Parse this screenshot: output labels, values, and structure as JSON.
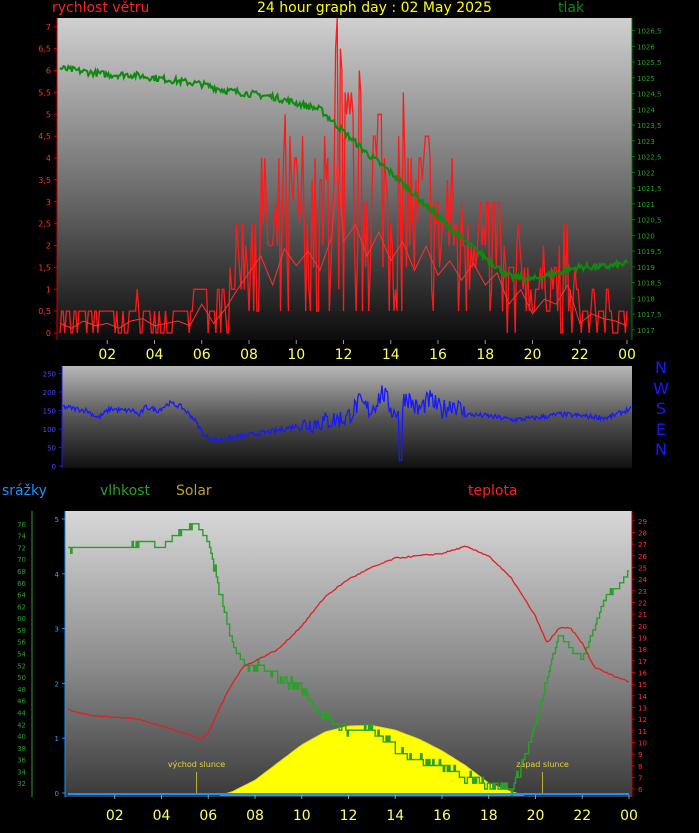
{
  "header": {
    "wind_label": "rychlost větru",
    "title": "24 hour graph day : 02 May 2025",
    "pressure_label": "tlak"
  },
  "direction_legend": [
    "N",
    "W",
    "S",
    "E",
    "N"
  ],
  "bottom_labels": {
    "rain": "srážky",
    "humidity": "vlhkost",
    "solar": "Solar",
    "temperature": "teplota"
  },
  "colors": {
    "wind": "#ff1a1a",
    "pressure": "#0e8a0e",
    "direction": "#1818ff",
    "humidity": "#2aa02a",
    "solar": "#ffff00",
    "temperature": "#e02020",
    "rain": "#1e90ff",
    "title": "#ffff00",
    "axis_text": "#ffff66"
  },
  "chart_data": [
    {
      "type": "line",
      "name": "wind_pressure",
      "x_ticks": [
        "02",
        "04",
        "06",
        "08",
        "10",
        "12",
        "14",
        "16",
        "18",
        "20",
        "22",
        "00"
      ],
      "y_left_ticks": [
        "0",
        "0,5",
        "1",
        "1,5",
        "2",
        "2,5",
        "3",
        "3,5",
        "4",
        "4,5",
        "5",
        "5,5",
        "6",
        "6,5",
        "7"
      ],
      "y_left_range": [
        0,
        7.2
      ],
      "y_right_ticks": [
        "1017",
        "1017,5",
        "1018",
        "1018,5",
        "1019",
        "1019,5",
        "1020",
        "1020,5",
        "1021",
        "1021,5",
        "1022",
        "1022,5",
        "1023",
        "1023,5",
        "1024",
        "1024,5",
        "1025",
        "1025,5",
        "1026",
        "1026,5"
      ],
      "y_right_range": [
        1016.9,
        1026.9
      ],
      "series": [
        {
          "axis": "left",
          "hours": [
            0,
            0.5,
            1,
            1.5,
            2,
            2.5,
            3,
            3.5,
            4,
            4.5,
            5,
            5.5,
            6,
            6.5,
            7,
            7.5,
            8,
            8.5,
            9,
            9.5,
            10,
            10.5,
            11,
            11.5,
            11.75,
            12,
            12.5,
            13,
            13.5,
            14,
            14.5,
            15,
            15.5,
            16,
            16.5,
            17,
            17.5,
            18,
            18.5,
            19,
            19.5,
            20,
            20.5,
            21,
            21.5,
            22,
            22.5,
            23,
            23.5,
            24
          ],
          "values": [
            0.4,
            0.2,
            0.5,
            0.3,
            0.4,
            0.2,
            0.5,
            0.6,
            0.3,
            0.4,
            0.5,
            0.3,
            1.2,
            0.4,
            1.0,
            1.8,
            2.5,
            3.2,
            2.0,
            3.5,
            2.8,
            3.4,
            2.6,
            4.0,
            7.2,
            3.8,
            4.5,
            3.2,
            4.2,
            3.0,
            3.8,
            2.6,
            3.6,
            2.4,
            3.0,
            2.2,
            2.9,
            2.0,
            2.5,
            1.2,
            1.8,
            0.8,
            1.4,
            1.2,
            2.0,
            0.4,
            0.8,
            0.6,
            0.5,
            0.3
          ]
        },
        {
          "axis": "right",
          "hours": [
            0,
            1,
            2,
            3,
            4,
            5,
            6,
            7,
            8,
            9,
            10,
            11,
            12,
            13,
            14,
            15,
            16,
            17,
            18,
            19,
            20,
            21,
            22,
            23,
            24
          ],
          "values": [
            1025.3,
            1025.2,
            1025.1,
            1025.1,
            1025.0,
            1024.9,
            1024.8,
            1024.6,
            1024.5,
            1024.4,
            1024.2,
            1024.0,
            1023.3,
            1022.6,
            1022.0,
            1021.3,
            1020.6,
            1019.9,
            1019.3,
            1018.7,
            1018.6,
            1018.8,
            1019.0,
            1019.0,
            1019.1
          ]
        }
      ]
    },
    {
      "type": "line",
      "name": "wind_direction",
      "y_ticks": [
        "0",
        "50",
        "100",
        "150",
        "200",
        "250"
      ],
      "y_range": [
        0,
        265
      ],
      "series": [
        {
          "hours": [
            0,
            1,
            1.5,
            2,
            2.5,
            3,
            3.2,
            3.5,
            4,
            4.5,
            5,
            5.5,
            6,
            6.5,
            7,
            8,
            9,
            10,
            11,
            12,
            12.5,
            13,
            13.5,
            14,
            14.5,
            15,
            15.5,
            16,
            16.5,
            17,
            18,
            19,
            20,
            21,
            22,
            23,
            24
          ],
          "values": [
            160,
            150,
            130,
            155,
            150,
            150,
            135,
            160,
            150,
            170,
            160,
            130,
            80,
            70,
            75,
            85,
            95,
            110,
            120,
            130,
            170,
            150,
            200,
            140,
            190,
            150,
            180,
            150,
            170,
            140,
            135,
            125,
            130,
            140,
            135,
            130,
            155
          ]
        }
      ]
    },
    {
      "type": "area",
      "name": "humidity_solar_temperature",
      "x_ticks": [
        "02",
        "04",
        "06",
        "08",
        "10",
        "12",
        "14",
        "16",
        "18",
        "20",
        "22",
        "00"
      ],
      "y_left_ticks": [
        "32",
        "34",
        "36",
        "38",
        "40",
        "42",
        "44",
        "46",
        "48",
        "50",
        "52",
        "54",
        "56",
        "58",
        "60",
        "62",
        "64",
        "66",
        "68",
        "70",
        "72",
        "74",
        "76"
      ],
      "y_left_range": [
        30,
        77.5
      ],
      "y_rain_ticks": [
        "0",
        "1",
        "2",
        "3",
        "4",
        "5"
      ],
      "y_rain_range": [
        0,
        5
      ],
      "y_right_ticks": [
        "6",
        "7",
        "8",
        "9",
        "10",
        "11",
        "12",
        "13",
        "14",
        "15",
        "16",
        "17",
        "18",
        "19",
        "20",
        "21",
        "22",
        "23",
        "24",
        "25",
        "26",
        "27",
        "28",
        "29"
      ],
      "y_right_range": [
        5.5,
        29.5
      ],
      "annotations": [
        {
          "hour": 5.5,
          "text": "východ slunce"
        },
        {
          "hour": 20.3,
          "text": "západ slunce"
        }
      ],
      "series": [
        {
          "axis": "left",
          "hours": [
            0,
            1,
            2,
            3,
            3.5,
            4,
            4.5,
            5,
            5.5,
            6,
            6.5,
            7,
            7.5,
            8,
            9,
            10,
            11,
            12,
            13,
            14,
            15,
            16,
            17,
            18,
            19,
            19.5,
            20,
            20.5,
            21,
            21.5,
            22,
            22.5,
            23,
            23.5,
            24
          ],
          "values": [
            71.5,
            72,
            72,
            72.5,
            73,
            72,
            74,
            75,
            76,
            73,
            64,
            56,
            52,
            52,
            50,
            48,
            43,
            41,
            41,
            38,
            36,
            35,
            33,
            32,
            31,
            36,
            42,
            50,
            57,
            55,
            53,
            58,
            64,
            65,
            68
          ]
        },
        {
          "axis": "left",
          "hours": [
            6.5,
            7,
            8,
            9,
            10,
            11,
            12,
            13,
            14,
            15,
            16,
            17,
            18,
            19,
            19.5
          ],
          "values": [
            30,
            30.5,
            32.5,
            35.5,
            38.5,
            40.7,
            41.7,
            41.8,
            41,
            39.5,
            37.5,
            35,
            32,
            30.5,
            30
          ]
        },
        {
          "axis": "right",
          "hours": [
            0,
            1,
            2,
            3,
            4,
            5,
            5.7,
            6,
            6.5,
            7,
            7.5,
            8,
            9,
            10,
            11,
            12,
            13,
            14,
            15,
            16,
            17,
            18,
            19,
            20,
            20.5,
            21,
            21.5,
            22,
            22.5,
            23,
            24
          ],
          "values": [
            12.8,
            12.3,
            12.2,
            12.0,
            11.4,
            10.8,
            10.3,
            10.8,
            13.0,
            15.0,
            16.5,
            17.0,
            18.0,
            20.0,
            22.5,
            24.0,
            25.0,
            25.8,
            26.0,
            26.2,
            26.8,
            26.0,
            24.0,
            20.8,
            18.5,
            19.8,
            19.8,
            18.5,
            16.5,
            16.0,
            15.2
          ]
        },
        {
          "axis": "rain",
          "hours": [
            0,
            24
          ],
          "values": [
            0,
            0
          ]
        }
      ]
    }
  ]
}
